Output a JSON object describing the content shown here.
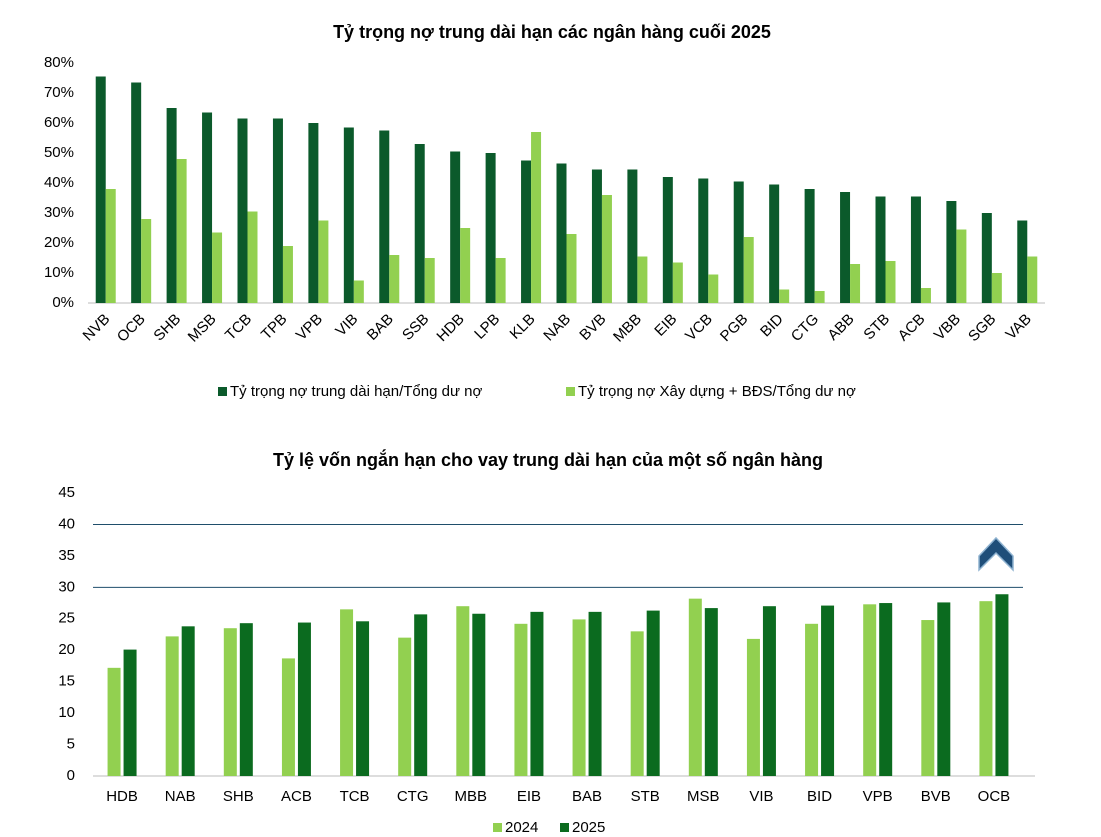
{
  "chart_data": [
    {
      "type": "bar",
      "title": "Tỷ trọng nợ trung dài hạn các ngân hàng cuối 2025",
      "categories": [
        "NVB",
        "OCB",
        "SHB",
        "MSB",
        "TCB",
        "TPB",
        "VPB",
        "VIB",
        "BAB",
        "SSB",
        "HDB",
        "LPB",
        "KLB",
        "NAB",
        "BVB",
        "MBB",
        "EIB",
        "VCB",
        "PGB",
        "BID",
        "CTG",
        "ABB",
        "STB",
        "ACB",
        "VBB",
        "SGB",
        "VAB"
      ],
      "series": [
        {
          "name": "Tỷ trọng nợ trung dài hạn/Tổng dư nợ",
          "color": "#0b5a2b",
          "values": [
            75.5,
            73.5,
            65,
            63.5,
            61.5,
            61.5,
            60,
            58.5,
            57.5,
            53,
            50.5,
            50,
            47.5,
            46.5,
            44.5,
            44.5,
            42,
            41.5,
            40.5,
            39.5,
            38,
            37,
            35.5,
            35.5,
            34,
            30,
            27.5
          ]
        },
        {
          "name": "Tỷ trọng nợ Xây dựng + BĐS/Tổng dư nợ",
          "color": "#92d050",
          "values": [
            38,
            28,
            48,
            23.5,
            30.5,
            19,
            27.5,
            7.5,
            16,
            15,
            25,
            15,
            57,
            23,
            36,
            15.5,
            13.5,
            9.5,
            22,
            4.5,
            4,
            13,
            14,
            5,
            24.5,
            10,
            15.5
          ]
        }
      ],
      "ylim": [
        0,
        80
      ],
      "yticks": [
        {
          "value": 0,
          "label": "0%"
        },
        {
          "value": 10,
          "label": "10%"
        },
        {
          "value": 20,
          "label": "20%"
        },
        {
          "value": 30,
          "label": "30%"
        },
        {
          "value": 40,
          "label": "40%"
        },
        {
          "value": 50,
          "label": "50%"
        },
        {
          "value": 60,
          "label": "60%"
        },
        {
          "value": 70,
          "label": "70%"
        },
        {
          "value": 80,
          "label": "80%"
        }
      ],
      "legend": "bottom"
    },
    {
      "type": "bar",
      "title": "Tỷ lệ vốn ngắn hạn cho vay trung dài hạn của một số ngân hàng",
      "categories": [
        "HDB",
        "NAB",
        "SHB",
        "ACB",
        "TCB",
        "CTG",
        "MBB",
        "EIB",
        "BAB",
        "STB",
        "MSB",
        "VIB",
        "BID",
        "VPB",
        "BVB",
        "OCB"
      ],
      "series": [
        {
          "name": "2024",
          "color": "#92d050",
          "values": [
            17.2,
            22.2,
            23.5,
            18.7,
            26.5,
            22,
            27,
            24.2,
            24.9,
            23,
            28.2,
            21.8,
            24.2,
            27.3,
            24.8,
            27.8
          ]
        },
        {
          "name": "2025",
          "color": "#0b6b1f",
          "values": [
            20.1,
            23.8,
            24.3,
            24.4,
            24.6,
            25.7,
            25.8,
            26.1,
            26.1,
            26.3,
            26.7,
            27,
            27.1,
            27.5,
            27.6,
            28.9
          ]
        }
      ],
      "ylim": [
        0,
        45
      ],
      "yticks": [
        0,
        5,
        10,
        15,
        20,
        25,
        30,
        35,
        40,
        45
      ],
      "reference_lines": [
        30,
        40
      ],
      "legend": "bottom"
    }
  ]
}
